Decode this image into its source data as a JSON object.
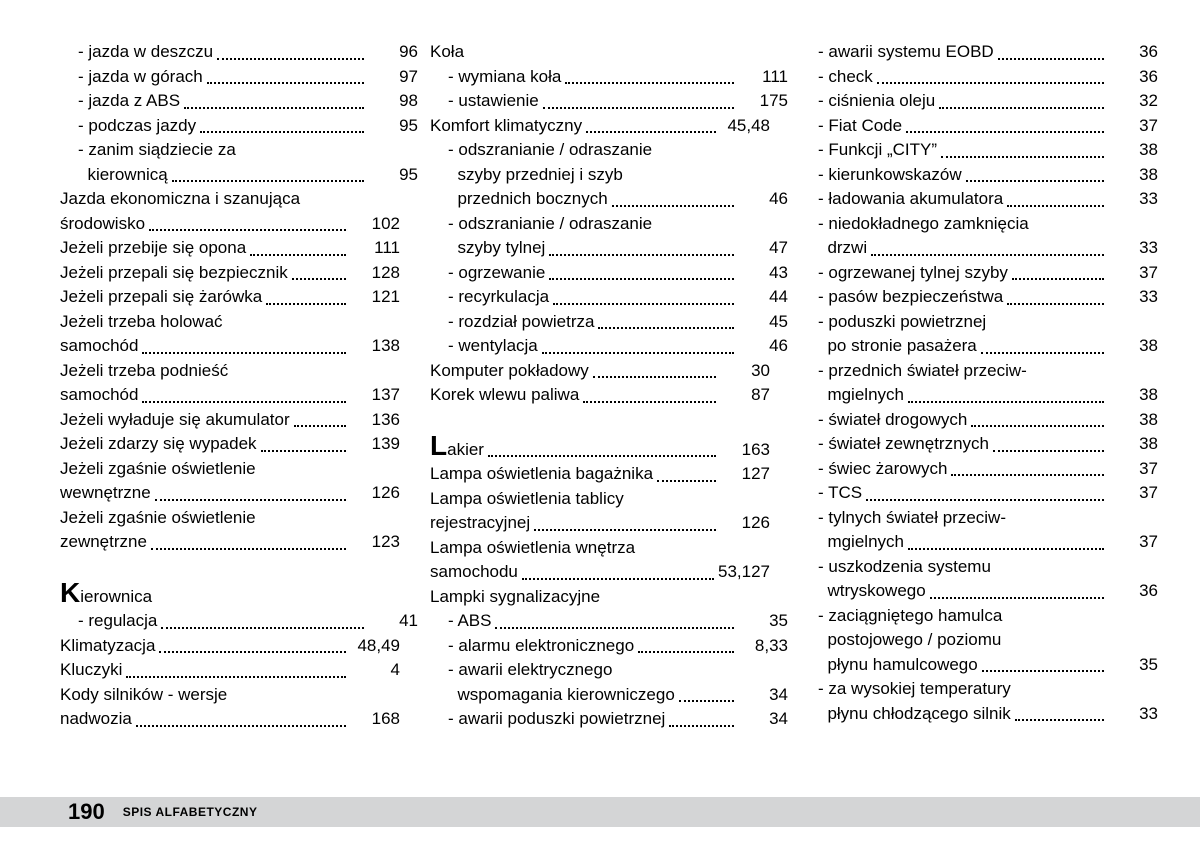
{
  "footer": {
    "page_number": "190",
    "title": "SPIS ALFABETYCZNY"
  },
  "columns": [
    {
      "items": [
        {
          "type": "entry",
          "indent": 1,
          "label": "- jazda w deszczu",
          "page": "96"
        },
        {
          "type": "entry",
          "indent": 1,
          "label": "- jazda w górach",
          "page": "97"
        },
        {
          "type": "entry",
          "indent": 1,
          "label": "- jazda z ABS",
          "page": "98"
        },
        {
          "type": "entry",
          "indent": 1,
          "label": "- podczas jazdy",
          "page": "95"
        },
        {
          "type": "head",
          "indent": 1,
          "label": "- zanim siądziecie za"
        },
        {
          "type": "entry",
          "indent": 1,
          "label": "  kierownicą",
          "page": "95"
        },
        {
          "type": "head",
          "indent": 0,
          "label": "Jazda ekonomiczna i szanująca"
        },
        {
          "type": "entry",
          "indent": 0,
          "label": "środowisko",
          "page": "102"
        },
        {
          "type": "entry",
          "indent": 0,
          "label": "Jeżeli przebije się opona",
          "page": "111"
        },
        {
          "type": "entry",
          "indent": 0,
          "label": "Jeżeli przepali się bezpiecznik",
          "page": "128"
        },
        {
          "type": "entry",
          "indent": 0,
          "label": "Jeżeli przepali się żarówka",
          "page": "121"
        },
        {
          "type": "head",
          "indent": 0,
          "label": "Jeżeli trzeba holować"
        },
        {
          "type": "entry",
          "indent": 0,
          "label": "samochód",
          "page": "138"
        },
        {
          "type": "head",
          "indent": 0,
          "label": "Jeżeli trzeba podnieść"
        },
        {
          "type": "entry",
          "indent": 0,
          "label": "samochód",
          "page": "137"
        },
        {
          "type": "entry",
          "indent": 0,
          "label": "Jeżeli wyładuje się akumulator",
          "page": "136"
        },
        {
          "type": "entry",
          "indent": 0,
          "label": "Jeżeli zdarzy się wypadek",
          "page": "139"
        },
        {
          "type": "head",
          "indent": 0,
          "label": "Jeżeli zgaśnie oświetlenie"
        },
        {
          "type": "entry",
          "indent": 0,
          "label": "wewnętrzne",
          "page": "126"
        },
        {
          "type": "head",
          "indent": 0,
          "label": "Jeżeli zgaśnie oświetlenie"
        },
        {
          "type": "entry",
          "indent": 0,
          "label": "zewnętrzne",
          "page": "123"
        },
        {
          "type": "letter",
          "letter": "K",
          "rest": "ierownica"
        },
        {
          "type": "entry",
          "indent": 1,
          "label": "- regulacja",
          "page": "41"
        },
        {
          "type": "entry",
          "indent": 0,
          "label": "Klimatyzacja",
          "page": "48,49"
        },
        {
          "type": "entry",
          "indent": 0,
          "label": "Kluczyki",
          "page": "4"
        },
        {
          "type": "head",
          "indent": 0,
          "label": "Kody silników - wersje"
        },
        {
          "type": "entry",
          "indent": 0,
          "label": "nadwozia",
          "page": "168"
        }
      ]
    },
    {
      "items": [
        {
          "type": "head",
          "indent": 0,
          "label": "Koła"
        },
        {
          "type": "entry",
          "indent": 1,
          "label": "- wymiana koła",
          "page": "111"
        },
        {
          "type": "entry",
          "indent": 1,
          "label": "- ustawienie",
          "page": "175"
        },
        {
          "type": "entry",
          "indent": 0,
          "label": "Komfort klimatyczny",
          "page": "45,48"
        },
        {
          "type": "head",
          "indent": 1,
          "label": "- odszranianie / odraszanie"
        },
        {
          "type": "head",
          "indent": 1,
          "label": "  szyby przedniej i szyb"
        },
        {
          "type": "entry",
          "indent": 1,
          "label": "  przednich bocznych",
          "page": "46"
        },
        {
          "type": "head",
          "indent": 1,
          "label": "- odszranianie / odraszanie"
        },
        {
          "type": "entry",
          "indent": 1,
          "label": "  szyby tylnej",
          "page": "47"
        },
        {
          "type": "entry",
          "indent": 1,
          "label": "- ogrzewanie",
          "page": "43"
        },
        {
          "type": "entry",
          "indent": 1,
          "label": "- recyrkulacja",
          "page": "44"
        },
        {
          "type": "entry",
          "indent": 1,
          "label": "- rozdział powietrza",
          "page": "45"
        },
        {
          "type": "entry",
          "indent": 1,
          "label": "- wentylacja",
          "page": "46"
        },
        {
          "type": "entry",
          "indent": 0,
          "label": "Komputer pokładowy",
          "page": "30"
        },
        {
          "type": "entry",
          "indent": 0,
          "label": "Korek wlewu paliwa",
          "page": "87"
        },
        {
          "type": "letter-entry",
          "letter": "L",
          "rest": "akier",
          "page": "163"
        },
        {
          "type": "entry",
          "indent": 0,
          "label": "Lampa oświetlenia bagażnika",
          "page": "127"
        },
        {
          "type": "head",
          "indent": 0,
          "label": "Lampa oświetlenia tablicy"
        },
        {
          "type": "entry",
          "indent": 0,
          "label": "rejestracyjnej",
          "page": "126"
        },
        {
          "type": "head",
          "indent": 0,
          "label": "Lampa oświetlenia wnętrza"
        },
        {
          "type": "entry",
          "indent": 0,
          "label": "samochodu",
          "page": "53,127"
        },
        {
          "type": "head",
          "indent": 0,
          "label": "Lampki sygnalizacyjne"
        },
        {
          "type": "entry",
          "indent": 1,
          "label": "- ABS",
          "page": "35"
        },
        {
          "type": "entry",
          "indent": 1,
          "label": "- alarmu elektronicznego",
          "page": "8,33"
        },
        {
          "type": "head",
          "indent": 1,
          "label": "- awarii elektrycznego"
        },
        {
          "type": "entry",
          "indent": 1,
          "label": "  wspomagania kierowniczego",
          "page": "34"
        },
        {
          "type": "entry",
          "indent": 1,
          "label": "- awarii poduszki powietrznej",
          "page": "34"
        }
      ]
    },
    {
      "items": [
        {
          "type": "entry",
          "indent": 1,
          "label": "- awarii systemu EOBD",
          "page": "36"
        },
        {
          "type": "entry",
          "indent": 1,
          "label": "- check",
          "page": "36"
        },
        {
          "type": "entry",
          "indent": 1,
          "label": "- ciśnienia oleju",
          "page": "32"
        },
        {
          "type": "entry",
          "indent": 1,
          "label": "- Fiat Code",
          "page": "37"
        },
        {
          "type": "entry",
          "indent": 1,
          "label": "- Funkcji „CITY”",
          "page": "38"
        },
        {
          "type": "entry",
          "indent": 1,
          "label": "- kierunkowskazów",
          "page": "38"
        },
        {
          "type": "entry",
          "indent": 1,
          "label": "- ładowania akumulatora",
          "page": "33"
        },
        {
          "type": "head",
          "indent": 1,
          "label": "- niedokładnego zamknięcia"
        },
        {
          "type": "entry",
          "indent": 1,
          "label": "  drzwi",
          "page": "33"
        },
        {
          "type": "entry",
          "indent": 1,
          "label": "- ogrzewanej tylnej szyby",
          "page": "37"
        },
        {
          "type": "entry",
          "indent": 1,
          "label": "- pasów bezpieczeństwa",
          "page": "33"
        },
        {
          "type": "head",
          "indent": 1,
          "label": "- poduszki powietrznej"
        },
        {
          "type": "entry",
          "indent": 1,
          "label": "  po stronie pasażera",
          "page": "38"
        },
        {
          "type": "head",
          "indent": 1,
          "label": "- przednich świateł przeciw-"
        },
        {
          "type": "entry",
          "indent": 1,
          "label": "  mgielnych",
          "page": "38"
        },
        {
          "type": "entry",
          "indent": 1,
          "label": "- świateł drogowych",
          "page": "38"
        },
        {
          "type": "entry",
          "indent": 1,
          "label": "- świateł zewnętrznych",
          "page": "38"
        },
        {
          "type": "entry",
          "indent": 1,
          "label": "- świec żarowych",
          "page": "37"
        },
        {
          "type": "entry",
          "indent": 1,
          "label": "- TCS",
          "page": "37"
        },
        {
          "type": "head",
          "indent": 1,
          "label": "- tylnych świateł przeciw-"
        },
        {
          "type": "entry",
          "indent": 1,
          "label": "  mgielnych",
          "page": "37"
        },
        {
          "type": "head",
          "indent": 1,
          "label": "- uszkodzenia systemu"
        },
        {
          "type": "entry",
          "indent": 1,
          "label": "  wtryskowego",
          "page": "36"
        },
        {
          "type": "head",
          "indent": 1,
          "label": "- zaciągniętego hamulca"
        },
        {
          "type": "head",
          "indent": 1,
          "label": "  postojowego / poziomu"
        },
        {
          "type": "entry",
          "indent": 1,
          "label": "  płynu hamulcowego",
          "page": "35"
        },
        {
          "type": "head",
          "indent": 1,
          "label": "- za wysokiej temperatury"
        },
        {
          "type": "entry",
          "indent": 1,
          "label": "  płynu chłodzącego silnik",
          "page": "33"
        }
      ]
    }
  ]
}
